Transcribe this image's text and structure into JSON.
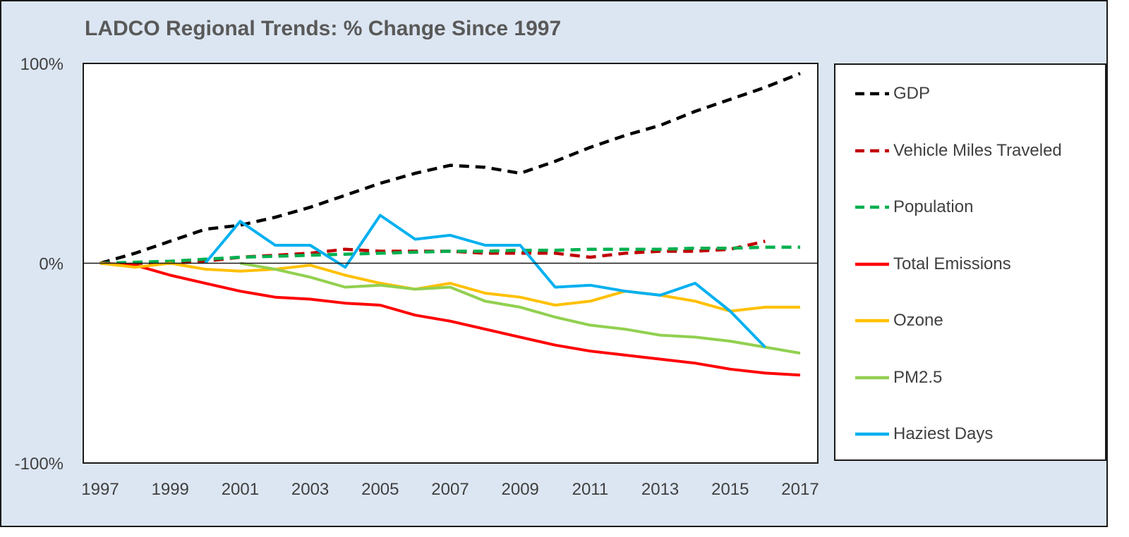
{
  "chart_data": {
    "type": "line",
    "title": "LADCO Regional Trends: % Change Since 1997",
    "xlabel": "",
    "ylabel": "",
    "xlim": [
      1997,
      2017
    ],
    "ylim": [
      -100,
      100
    ],
    "x_ticks": [
      "1997",
      "1999",
      "2001",
      "2003",
      "2005",
      "2007",
      "2009",
      "2011",
      "2013",
      "2015",
      "2017"
    ],
    "y_ticks": [
      {
        "value": 100,
        "label": "100%"
      },
      {
        "value": 0,
        "label": "0%"
      },
      {
        "value": -100,
        "label": "-100%"
      }
    ],
    "grid": false,
    "legend": "right",
    "series": [
      {
        "name": "GDP",
        "color": "#000000",
        "dash": true,
        "x": [
          1997,
          1998,
          1999,
          2000,
          2001,
          2002,
          2003,
          2004,
          2005,
          2006,
          2007,
          2008,
          2009,
          2010,
          2011,
          2012,
          2013,
          2014,
          2015,
          2016,
          2017
        ],
        "y": [
          0,
          5,
          11,
          17,
          19,
          23,
          28,
          34,
          40,
          45,
          49,
          48,
          45,
          51,
          58,
          64,
          69,
          76,
          82,
          88,
          95
        ]
      },
      {
        "name": "Vehicle Miles Traveled",
        "color": "#c00000",
        "dash": true,
        "x": [
          1997,
          1998,
          1999,
          2000,
          2001,
          2002,
          2003,
          2004,
          2005,
          2006,
          2007,
          2008,
          2009,
          2010,
          2011,
          2012,
          2013,
          2014,
          2015,
          2016
        ],
        "y": [
          0,
          0,
          0,
          1,
          3,
          4,
          5,
          7,
          6,
          6,
          6,
          5,
          5,
          5,
          3,
          5,
          6,
          6,
          7,
          11
        ]
      },
      {
        "name": "Population",
        "color": "#00b050",
        "dash": true,
        "x": [
          1997,
          1998,
          1999,
          2000,
          2001,
          2002,
          2003,
          2004,
          2005,
          2006,
          2007,
          2008,
          2009,
          2010,
          2011,
          2012,
          2013,
          2014,
          2015,
          2016,
          2017
        ],
        "y": [
          0,
          0.5,
          1,
          2,
          3,
          3.5,
          4,
          4.5,
          5,
          5.5,
          6,
          6,
          6.5,
          6.5,
          7,
          7,
          7,
          7.5,
          7.5,
          8,
          8
        ]
      },
      {
        "name": "Total Emissions",
        "color": "#ff0000",
        "dash": false,
        "x": [
          1997,
          1998,
          1999,
          2000,
          2001,
          2002,
          2003,
          2004,
          2005,
          2006,
          2007,
          2008,
          2009,
          2010,
          2011,
          2012,
          2013,
          2014,
          2015,
          2016,
          2017
        ],
        "y": [
          0,
          -1,
          -6,
          -10,
          -14,
          -17,
          -18,
          -20,
          -21,
          -26,
          -29,
          -33,
          -37,
          -41,
          -44,
          -46,
          -48,
          -50,
          -53,
          -55,
          -56
        ]
      },
      {
        "name": "Ozone",
        "color": "#ffc000",
        "dash": false,
        "x": [
          1997,
          1998,
          1999,
          2000,
          2001,
          2002,
          2003,
          2004,
          2005,
          2006,
          2007,
          2008,
          2009,
          2010,
          2011,
          2012,
          2013,
          2014,
          2015,
          2016,
          2017
        ],
        "y": [
          0,
          -2,
          0,
          -3,
          -4,
          -3,
          -1,
          -6,
          -10,
          -13,
          -10,
          -15,
          -17,
          -21,
          -19,
          -14,
          -16,
          -19,
          -24,
          -22,
          -22
        ]
      },
      {
        "name": "PM2.5",
        "color": "#92d050",
        "dash": false,
        "x": [
          2001,
          2002,
          2003,
          2004,
          2005,
          2006,
          2007,
          2008,
          2009,
          2010,
          2011,
          2012,
          2013,
          2014,
          2015,
          2016,
          2017
        ],
        "y": [
          0,
          -3,
          -7,
          -12,
          -11,
          -13,
          -12,
          -19,
          -22,
          -27,
          -31,
          -33,
          -36,
          -37,
          -39,
          -42,
          -45
        ]
      },
      {
        "name": "Haziest Days",
        "color": "#00b0f0",
        "dash": false,
        "x": [
          2000,
          2001,
          2002,
          2003,
          2004,
          2005,
          2006,
          2007,
          2008,
          2009,
          2010,
          2011,
          2012,
          2013,
          2014,
          2015,
          2016
        ],
        "y": [
          0,
          21,
          9,
          9,
          -2,
          24,
          12,
          14,
          9,
          9,
          -12,
          -11,
          -14,
          -16,
          -10,
          -24,
          -42
        ]
      }
    ]
  }
}
